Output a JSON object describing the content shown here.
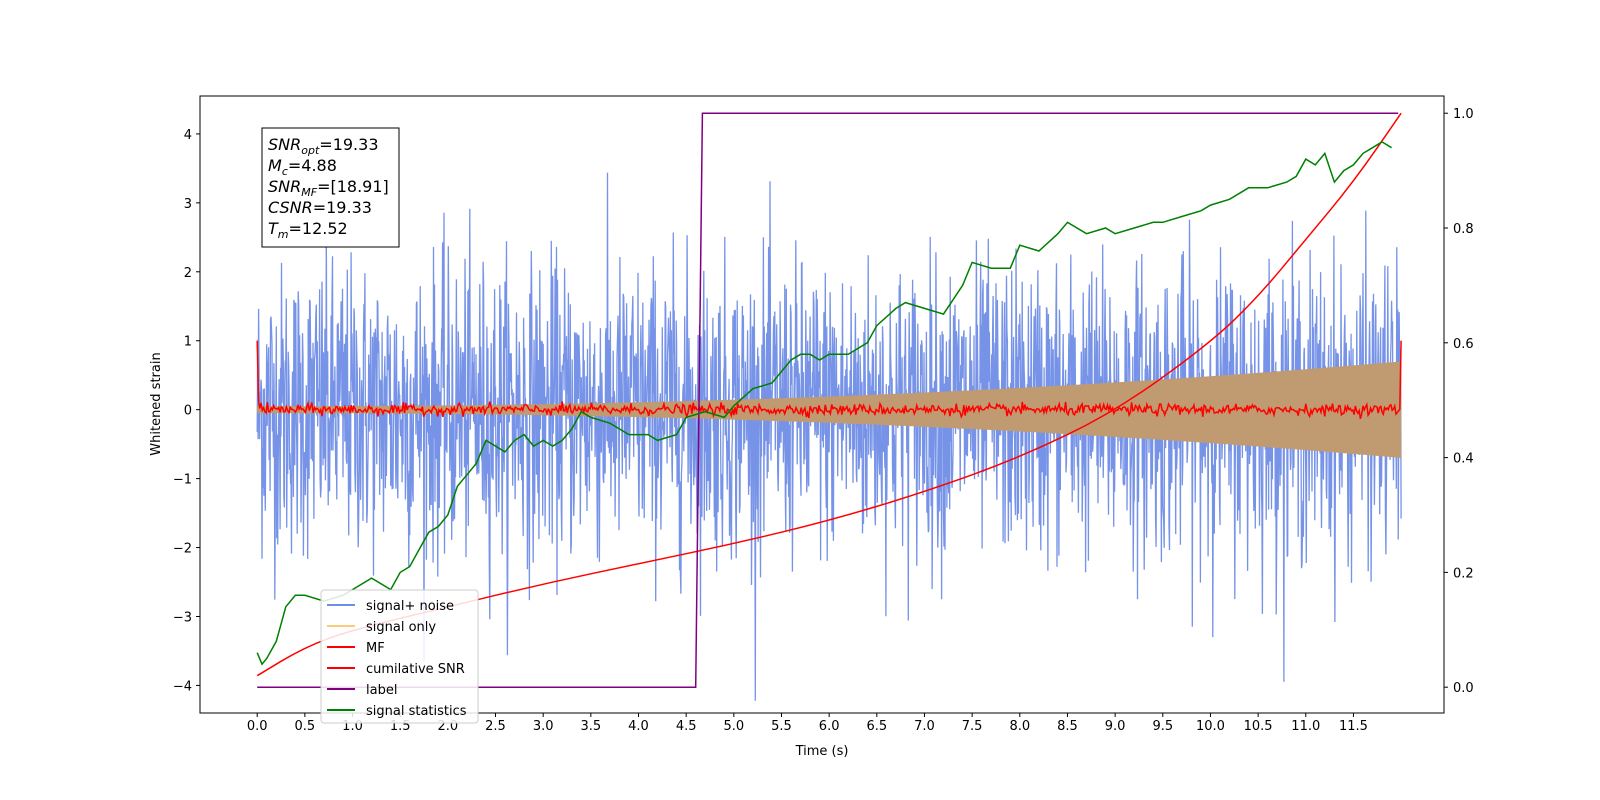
{
  "chart_data": {
    "type": "line",
    "title": "",
    "xlabel": "Time (s)",
    "ylabel": "Whitened strain",
    "xlim": [
      -0.6,
      12.45
    ],
    "ylim": [
      -4.4,
      4.55
    ],
    "y2lim": [
      -0.045,
      1.03
    ],
    "xticks": [
      "0.0",
      "0.5",
      "1.0",
      "1.5",
      "2.0",
      "2.5",
      "3.0",
      "3.5",
      "4.0",
      "4.5",
      "5.0",
      "5.5",
      "6.0",
      "6.5",
      "7.0",
      "7.5",
      "8.0",
      "8.5",
      "9.0",
      "9.5",
      "10.0",
      "10.5",
      "11.0",
      "11.5"
    ],
    "yticks": [
      "−4",
      "−3",
      "−2",
      "−1",
      "0",
      "1",
      "2",
      "3",
      "4"
    ],
    "y2ticks": [
      "0.0",
      "0.2",
      "0.4",
      "0.6",
      "0.8",
      "1.0"
    ],
    "grid": false,
    "legend_position": "lower-left",
    "series": [
      {
        "name": "signal+ noise",
        "color": "#6f8de6",
        "axis": "left",
        "style": "noise",
        "x_range": [
          0,
          12
        ],
        "sigma": 1.0
      },
      {
        "name": "signal only",
        "color": "#ffc87a",
        "axis": "left",
        "style": "chirp",
        "x_range": [
          0,
          12
        ],
        "amplitude_start": 0.05,
        "amplitude_end": 0.7
      },
      {
        "name": "MF",
        "color": "#ff0000",
        "axis": "left",
        "style": "mf",
        "x_range": [
          0,
          12
        ],
        "start_value": 1.0,
        "end_value": 1.0
      },
      {
        "name": "cumilative SNR",
        "color": "#ff0000",
        "axis": "right",
        "x": [
          0,
          0.5,
          1,
          2,
          3,
          4,
          5,
          6,
          7,
          8,
          9,
          10,
          10.5,
          11,
          11.5,
          12
        ],
        "y": [
          0.02,
          0.07,
          0.1,
          0.14,
          0.18,
          0.215,
          0.25,
          0.29,
          0.34,
          0.4,
          0.48,
          0.6,
          0.68,
          0.78,
          0.88,
          1.0
        ]
      },
      {
        "name": "label",
        "color": "#800080",
        "axis": "right",
        "x": [
          0,
          4.6,
          4.67,
          11.97
        ],
        "y": [
          0,
          0,
          1,
          1
        ]
      },
      {
        "name": "signal statistics",
        "color": "#008000",
        "axis": "right",
        "x": [
          0,
          0.05,
          0.1,
          0.2,
          0.3,
          0.4,
          0.5,
          0.7,
          0.9,
          1.0,
          1.2,
          1.4,
          1.5,
          1.6,
          1.7,
          1.8,
          1.9,
          2.0,
          2.1,
          2.2,
          2.3,
          2.4,
          2.5,
          2.6,
          2.7,
          2.8,
          2.9,
          3.0,
          3.1,
          3.2,
          3.3,
          3.4,
          3.5,
          3.7,
          3.9,
          4.1,
          4.2,
          4.4,
          4.5,
          4.7,
          4.9,
          5.0,
          5.2,
          5.4,
          5.5,
          5.6,
          5.7,
          5.8,
          5.9,
          6.0,
          6.2,
          6.4,
          6.5,
          6.7,
          6.8,
          7.0,
          7.2,
          7.4,
          7.5,
          7.7,
          7.9,
          8.0,
          8.2,
          8.4,
          8.5,
          8.7,
          8.9,
          9.0,
          9.2,
          9.4,
          9.5,
          9.7,
          9.9,
          10.0,
          10.2,
          10.4,
          10.6,
          10.8,
          10.9,
          11.0,
          11.1,
          11.2,
          11.3,
          11.4,
          11.5,
          11.6,
          11.7,
          11.8,
          11.9
        ],
        "y": [
          0.06,
          0.04,
          0.05,
          0.08,
          0.14,
          0.16,
          0.16,
          0.15,
          0.16,
          0.17,
          0.19,
          0.17,
          0.2,
          0.21,
          0.24,
          0.27,
          0.28,
          0.3,
          0.35,
          0.37,
          0.39,
          0.43,
          0.42,
          0.41,
          0.43,
          0.44,
          0.42,
          0.43,
          0.42,
          0.43,
          0.45,
          0.48,
          0.47,
          0.46,
          0.44,
          0.44,
          0.43,
          0.44,
          0.47,
          0.48,
          0.47,
          0.49,
          0.52,
          0.53,
          0.55,
          0.57,
          0.58,
          0.58,
          0.57,
          0.58,
          0.58,
          0.6,
          0.63,
          0.66,
          0.67,
          0.66,
          0.65,
          0.7,
          0.74,
          0.73,
          0.73,
          0.77,
          0.76,
          0.79,
          0.81,
          0.79,
          0.8,
          0.79,
          0.8,
          0.81,
          0.81,
          0.82,
          0.83,
          0.84,
          0.85,
          0.87,
          0.87,
          0.88,
          0.89,
          0.92,
          0.91,
          0.93,
          0.88,
          0.9,
          0.91,
          0.93,
          0.94,
          0.95,
          0.94
        ]
      }
    ],
    "annotation": [
      {
        "base": "SNR",
        "sub": "opt",
        "value": "=19.33"
      },
      {
        "base": "M",
        "sub": "c",
        "value": "=4.88"
      },
      {
        "base": "SNR",
        "sub": "MF",
        "value": "=[18.91]"
      },
      {
        "base": "CSNR",
        "sub": "",
        "value": "=19.33"
      },
      {
        "base": "T",
        "sub": "m",
        "value": "=12.52"
      }
    ]
  }
}
